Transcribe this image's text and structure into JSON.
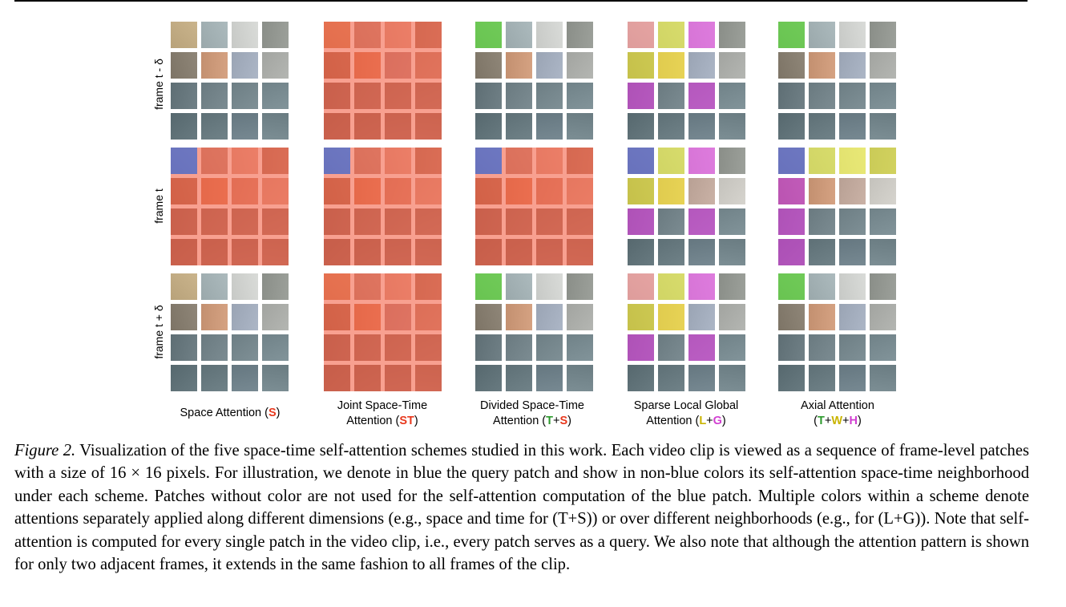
{
  "figure": {
    "row_labels": [
      "frame t - δ",
      "frame t",
      "frame t + δ"
    ],
    "columns": [
      {
        "line1": "Space Attention (",
        "code_parts": [
          {
            "text": "S",
            "color": "#e8391e"
          }
        ],
        "line1_end": ")",
        "line2": ""
      },
      {
        "line1": "Joint Space-Time",
        "line2_pre": "Attention (",
        "code_parts": [
          {
            "text": "ST",
            "color": "#e8391e"
          }
        ],
        "line2_end": ")"
      },
      {
        "line1": "Divided Space-Time",
        "line2_pre": "Attention (",
        "code_parts": [
          {
            "text": "T",
            "color": "#2e9b2e"
          },
          {
            "text": "+",
            "color": "#000000"
          },
          {
            "text": "S",
            "color": "#e8391e"
          }
        ],
        "line2_end": ")"
      },
      {
        "line1": "Sparse Local Global",
        "line2_pre": "Attention (",
        "code_parts": [
          {
            "text": "L",
            "color": "#c9b400"
          },
          {
            "text": "+",
            "color": "#000000"
          },
          {
            "text": "G",
            "color": "#d13fd1"
          }
        ],
        "line2_end": ")"
      },
      {
        "line1": "Axial Attention",
        "line2_pre": "(",
        "code_parts": [
          {
            "text": "T",
            "color": "#2e9b2e"
          },
          {
            "text": "+",
            "color": "#000000"
          },
          {
            "text": "W",
            "color": "#c9b400"
          },
          {
            "text": "+",
            "color": "#000000"
          },
          {
            "text": "H",
            "color": "#d13fd1"
          }
        ],
        "line2_end": ")"
      }
    ],
    "colors": {
      "query_blue": "#4a5fd6",
      "space_red": "#f25a3c",
      "time_green": "#38d838",
      "local_yellow": "#f2f03a",
      "global_magenta": "#e040e0",
      "local_pink": "#f59ab0",
      "grid_line_red": "#f8a090"
    }
  },
  "caption": {
    "figure_number": "Figure 2.",
    "text": " Visualization of the five space-time self-attention schemes studied in this work. Each video clip is viewed as a sequence of frame-level patches with a size of 16 × 16 pixels. For illustration, we denote in blue the query patch and show in non-blue colors its self-attention space-time neighborhood under each scheme. Patches without color are not used for the self-attention computation of the blue patch. Multiple colors within a scheme denote attentions separately applied along different dimensions (e.g., space and time for (T+S)) or over different neighborhoods (e.g., for (L+G)). Note that self-attention is computed for every single patch in the video clip, i.e., every patch serves as a query. We also note that although the attention pattern is shown for only two adjacent frames, it extends in the same fashion to all frames of the clip."
  }
}
